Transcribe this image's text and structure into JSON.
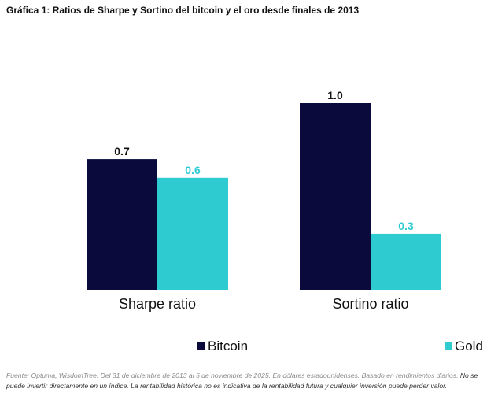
{
  "title": "Gráfica 1: Ratios de Sharpe y Sortino del bitcoin y el oro desde finales de 2013",
  "chart_data": {
    "type": "bar",
    "categories": [
      "Sharpe ratio",
      "Sortino ratio"
    ],
    "series": [
      {
        "name": "Bitcoin",
        "values": [
          0.7,
          1.0
        ],
        "labels": [
          "0.7",
          "1.0"
        ],
        "color": "#0b0a3d",
        "label_color": "#111111"
      },
      {
        "name": "Gold",
        "values": [
          0.6,
          0.3
        ],
        "labels": [
          "0.6",
          "0.3"
        ],
        "color": "#2ecbd1",
        "label_color": "#2ecbd1"
      }
    ],
    "ylim": [
      0,
      1.0
    ],
    "xlabel": "",
    "ylabel": "",
    "grid": false,
    "legend_position": "bottom"
  },
  "footnote": {
    "source": "Fuente: Optuma, WisdomTree. Del 31 de diciembre de 2013 al 5 de noviembre de 2025. En dólares estadounidenses. Basado en rendimientos diarios.",
    "disclaimer": "No se puede invertir directamente en un índice. La rentabilidad histórica no es indicativa de la rentabilidad futura y cualquier inversión puede perder valor."
  }
}
